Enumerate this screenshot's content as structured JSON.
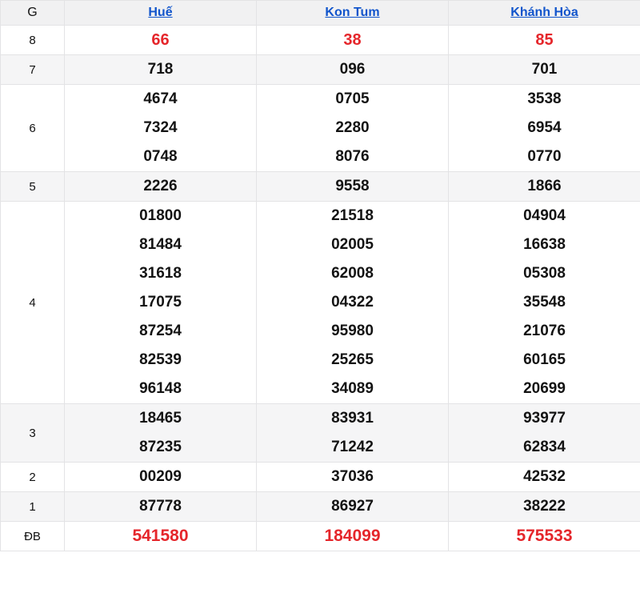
{
  "colors": {
    "highlight_red": "#e5262b",
    "link_blue": "#1155cc",
    "stripe_gray": "#f5f5f6",
    "header_gray": "#f1f1f2",
    "border_gray": "#e3e3e5"
  },
  "table": {
    "corner_label": "G",
    "columns": [
      {
        "label": "Huế"
      },
      {
        "label": "Kon Tum"
      },
      {
        "label": "Khánh Hòa"
      }
    ],
    "rows": [
      {
        "label": "8",
        "cells": [
          [
            "66"
          ],
          [
            "38"
          ],
          [
            "85"
          ]
        ]
      },
      {
        "label": "7",
        "cells": [
          [
            "718"
          ],
          [
            "096"
          ],
          [
            "701"
          ]
        ]
      },
      {
        "label": "6",
        "cells": [
          [
            "4674",
            "7324",
            "0748"
          ],
          [
            "0705",
            "2280",
            "8076"
          ],
          [
            "3538",
            "6954",
            "0770"
          ]
        ]
      },
      {
        "label": "5",
        "cells": [
          [
            "2226"
          ],
          [
            "9558"
          ],
          [
            "1866"
          ]
        ]
      },
      {
        "label": "4",
        "cells": [
          [
            "01800",
            "81484",
            "31618",
            "17075",
            "87254",
            "82539",
            "96148"
          ],
          [
            "21518",
            "02005",
            "62008",
            "04322",
            "95980",
            "25265",
            "34089"
          ],
          [
            "04904",
            "16638",
            "05308",
            "35548",
            "21076",
            "60165",
            "20699"
          ]
        ]
      },
      {
        "label": "3",
        "cells": [
          [
            "18465",
            "87235"
          ],
          [
            "83931",
            "71242"
          ],
          [
            "93977",
            "62834"
          ]
        ]
      },
      {
        "label": "2",
        "cells": [
          [
            "00209"
          ],
          [
            "37036"
          ],
          [
            "42532"
          ]
        ]
      },
      {
        "label": "1",
        "cells": [
          [
            "87778"
          ],
          [
            "86927"
          ],
          [
            "38222"
          ]
        ]
      },
      {
        "label": "ĐB",
        "cells": [
          [
            "541580"
          ],
          [
            "184099"
          ],
          [
            "575533"
          ]
        ]
      }
    ]
  }
}
